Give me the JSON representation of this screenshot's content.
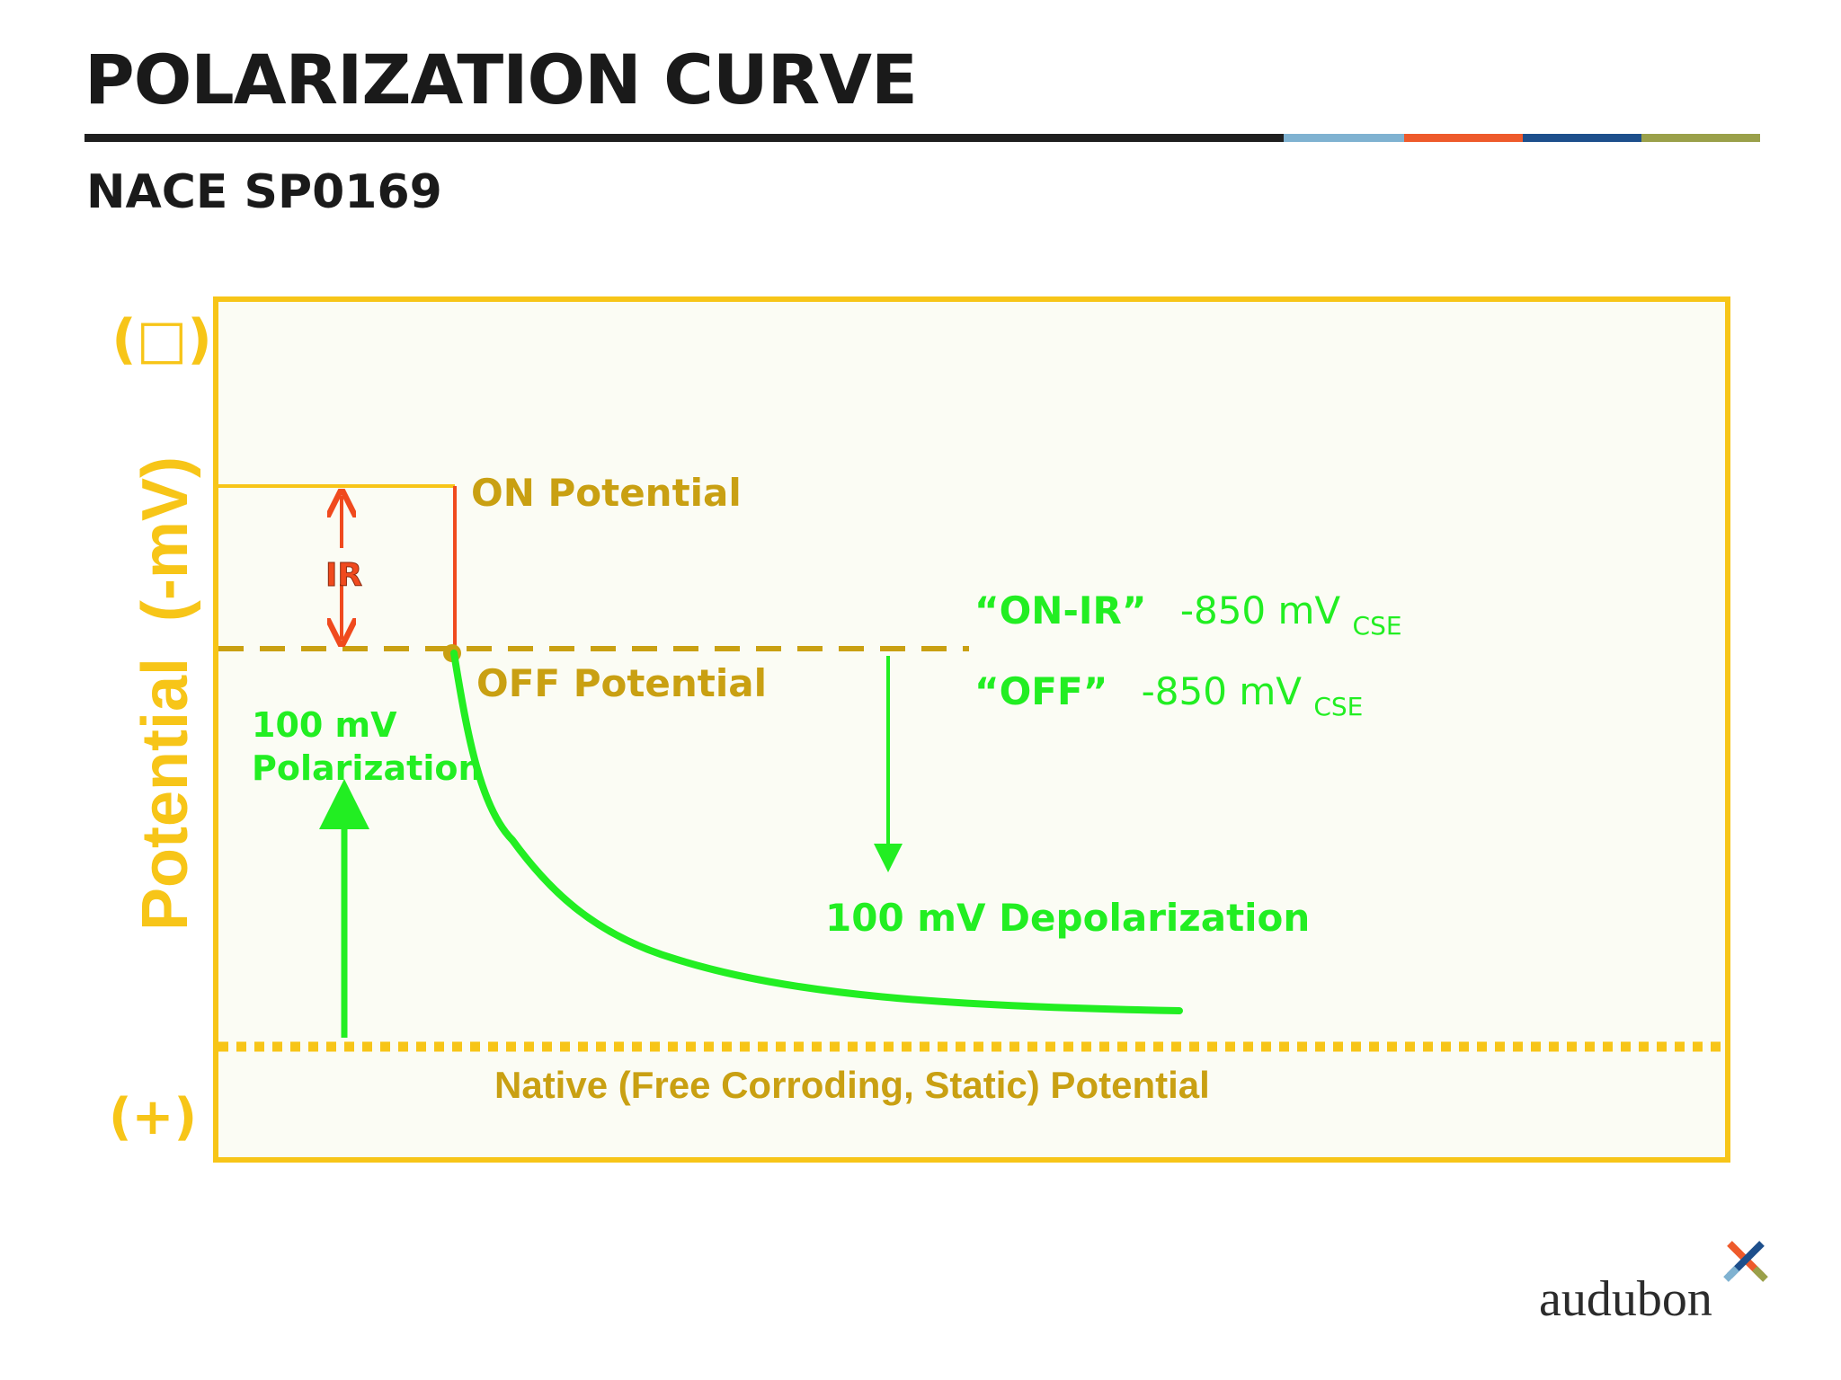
{
  "header": {
    "title": "POLARIZATION CURVE",
    "subtitle": "NACE SP0169"
  },
  "colors": {
    "rule_main": "#1f1f1f",
    "rule_blue": "#7fb2d1",
    "rule_orange": "#ee5a2b",
    "rule_navy": "#1d4f8c",
    "rule_olive": "#9aa04a",
    "frame": "#f7c518",
    "gold_text": "#c9a012",
    "green": "#22ee22",
    "red": "#f04a1e",
    "panel_bg": "#fbfcf4"
  },
  "diagram": {
    "y_axis_label": "Potential  (-mV)",
    "y_top_symbol": "(□)",
    "y_bottom_symbol": "(+)",
    "on_potential": "ON Potential",
    "off_potential": "OFF Potential",
    "ir_label": "IR",
    "on_ir_label": "“ON-IR”",
    "on_ir_value": "-850 mV",
    "on_ir_sub": "CSE",
    "off_label": "“OFF”",
    "off_value": "-850 mV",
    "off_sub": "CSE",
    "polarization_line1": "100 mV",
    "polarization_line2": "Polarization",
    "depolarization": "100 mV Depolarization",
    "native": "Native (Free Corroding, Static) Potential"
  },
  "logo": {
    "text": "audubon",
    "icon": "audubon-cross-icon"
  }
}
